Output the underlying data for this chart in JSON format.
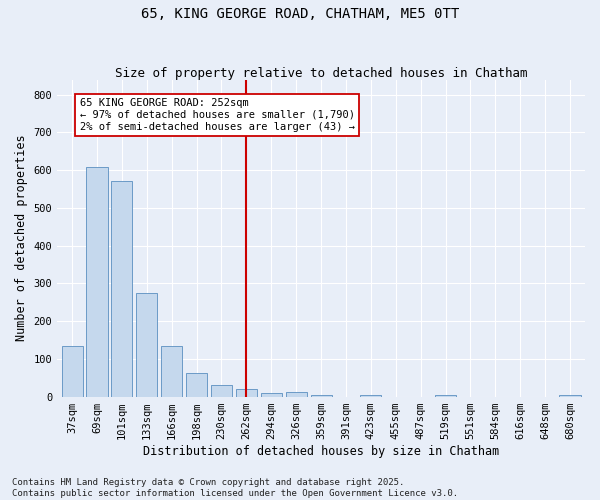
{
  "title": "65, KING GEORGE ROAD, CHATHAM, ME5 0TT",
  "subtitle": "Size of property relative to detached houses in Chatham",
  "xlabel": "Distribution of detached houses by size in Chatham",
  "ylabel": "Number of detached properties",
  "categories": [
    "37sqm",
    "69sqm",
    "101sqm",
    "133sqm",
    "166sqm",
    "198sqm",
    "230sqm",
    "262sqm",
    "294sqm",
    "326sqm",
    "359sqm",
    "391sqm",
    "423sqm",
    "455sqm",
    "487sqm",
    "519sqm",
    "551sqm",
    "584sqm",
    "616sqm",
    "648sqm",
    "680sqm"
  ],
  "values": [
    135,
    608,
    570,
    275,
    135,
    63,
    30,
    20,
    9,
    12,
    5,
    0,
    4,
    0,
    0,
    4,
    0,
    0,
    0,
    0,
    5
  ],
  "bar_color": "#c5d8ed",
  "bar_edge_color": "#5a8fc0",
  "vline_x": 7,
  "vline_color": "#cc0000",
  "annotation_text": "65 KING GEORGE ROAD: 252sqm\n← 97% of detached houses are smaller (1,790)\n2% of semi-detached houses are larger (43) →",
  "annotation_box_color": "#ffffff",
  "annotation_box_edge": "#cc0000",
  "ylim": [
    0,
    840
  ],
  "yticks": [
    0,
    100,
    200,
    300,
    400,
    500,
    600,
    700,
    800
  ],
  "background_color": "#e8eef8",
  "grid_color": "#ffffff",
  "footer_text": "Contains HM Land Registry data © Crown copyright and database right 2025.\nContains public sector information licensed under the Open Government Licence v3.0.",
  "title_fontsize": 10,
  "subtitle_fontsize": 9,
  "axis_label_fontsize": 8.5,
  "tick_fontsize": 7.5,
  "footer_fontsize": 6.5,
  "annot_fontsize": 7.5
}
